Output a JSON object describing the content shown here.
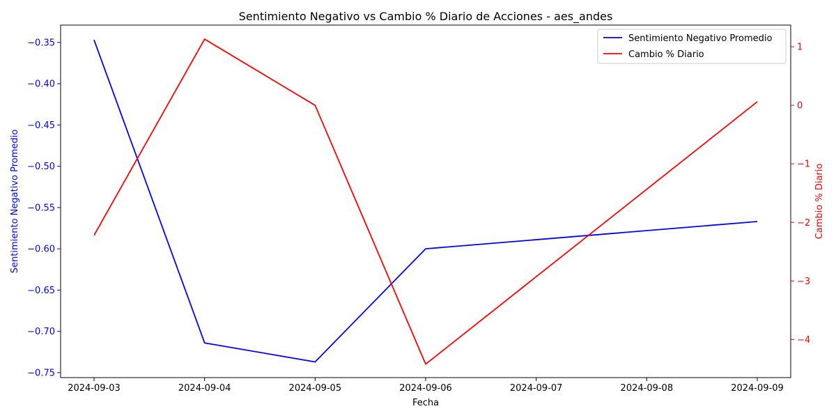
{
  "chart_data": {
    "type": "line",
    "title": "Sentimiento Negativo vs Cambio % Diario de Acciones - aes_andes",
    "xlabel": "Fecha",
    "ylabel_left": "Sentimiento Negativo Promedio",
    "ylabel_right": "Cambio % Diario",
    "x_ticks": [
      "2024-09-03",
      "2024-09-04",
      "2024-09-05",
      "2024-09-06",
      "2024-09-07",
      "2024-09-08",
      "2024-09-09"
    ],
    "y_left_ticks": [
      "−0.35",
      "−0.40",
      "−0.45",
      "−0.50",
      "−0.55",
      "−0.60",
      "−0.65",
      "−0.70",
      "−0.75"
    ],
    "y_right_ticks": [
      "1",
      "0",
      "−1",
      "−2",
      "−3",
      "−4"
    ],
    "ylim_left": [
      -0.756,
      -0.329
    ],
    "ylim_right": [
      -4.65,
      1.37
    ],
    "legend_position": "top-right",
    "grid": false,
    "series": [
      {
        "name": "Sentimiento Negativo Promedio",
        "axis": "left",
        "color": "#0000ff",
        "x": [
          "2024-09-03",
          "2024-09-04",
          "2024-09-05",
          "2024-09-06",
          "2024-09-09"
        ],
        "values": [
          -0.347,
          -0.714,
          -0.737,
          -0.6,
          -0.567
        ]
      },
      {
        "name": "Cambio % Diario",
        "axis": "right",
        "color": "#ff0000",
        "x": [
          "2024-09-03",
          "2024-09-04",
          "2024-09-05",
          "2024-09-06",
          "2024-09-09"
        ],
        "values": [
          -2.22,
          1.13,
          0.0,
          -4.42,
          0.06
        ]
      }
    ]
  }
}
